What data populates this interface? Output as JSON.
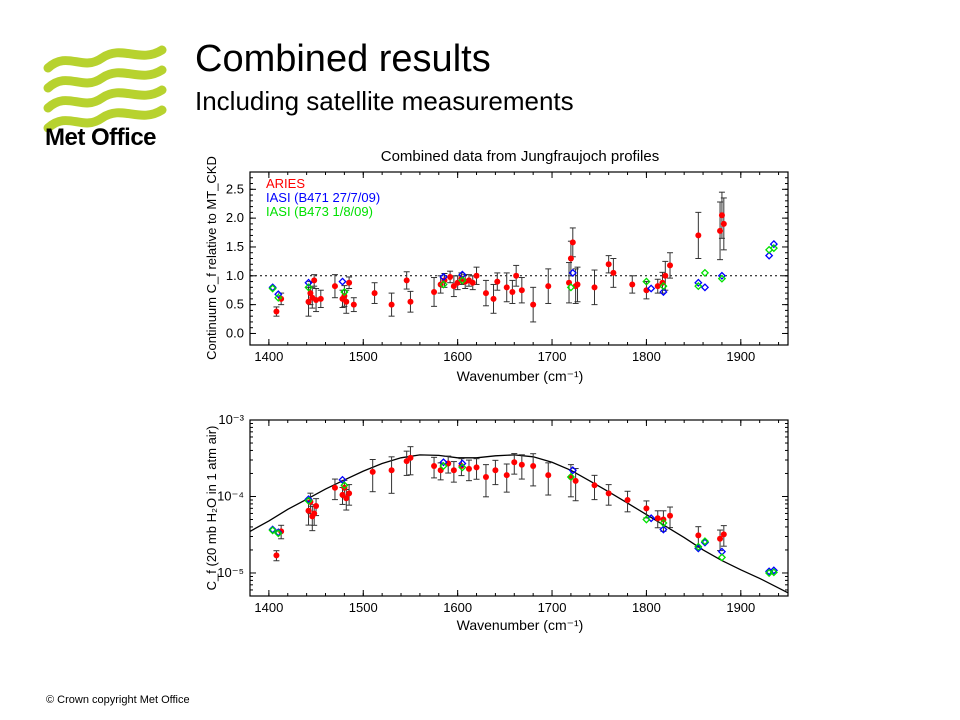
{
  "header": {
    "title": "Combined results",
    "subtitle": "Including satellite measurements"
  },
  "logo": {
    "text": "Met Office",
    "color": "#b7d22f"
  },
  "footer": {
    "copyright": "© Crown  copyright   Met Office"
  },
  "chart_data": [
    {
      "type": "scatter",
      "title": "Combined data from Jungfraujoch profiles",
      "xlabel": "Wavenumber (cm⁻¹)",
      "ylabel": "Continuum C_f relative to MT_CKD",
      "xlim": [
        1380,
        1950
      ],
      "ylim": [
        -0.2,
        2.8
      ],
      "xticks": [
        1400,
        1500,
        1600,
        1700,
        1800,
        1900
      ],
      "yticks": [
        0.0,
        0.5,
        1.0,
        1.5,
        2.0,
        2.5
      ],
      "reference_line": 1.0,
      "legend_position": "top-left",
      "series": [
        {
          "name": "ARIES",
          "color": "#ff0000",
          "marker": "circle",
          "x": [
            1408,
            1413,
            1442,
            1444,
            1446,
            1448,
            1450,
            1455,
            1470,
            1478,
            1480,
            1482,
            1485,
            1490,
            1512,
            1530,
            1546,
            1550,
            1575,
            1582,
            1586,
            1592,
            1596,
            1600,
            1604,
            1608,
            1612,
            1616,
            1620,
            1630,
            1638,
            1642,
            1652,
            1658,
            1662,
            1668,
            1680,
            1696,
            1718,
            1720,
            1722,
            1725,
            1727,
            1745,
            1760,
            1765,
            1785,
            1800,
            1812,
            1817,
            1820,
            1825,
            1855,
            1878,
            1880,
            1882
          ],
          "y": [
            0.38,
            0.6,
            0.55,
            0.7,
            0.62,
            0.92,
            0.58,
            0.6,
            0.82,
            0.6,
            0.65,
            0.55,
            0.88,
            0.5,
            0.7,
            0.5,
            0.92,
            0.55,
            0.72,
            0.85,
            0.92,
            0.98,
            0.82,
            0.88,
            0.95,
            0.9,
            0.92,
            0.88,
            1.0,
            0.7,
            0.6,
            0.9,
            0.8,
            0.72,
            1.0,
            0.75,
            0.5,
            0.82,
            0.88,
            1.3,
            1.58,
            0.82,
            0.85,
            0.8,
            1.2,
            1.05,
            0.85,
            0.75,
            0.82,
            0.88,
            1.0,
            1.18,
            1.7,
            1.78,
            2.05,
            1.9
          ],
          "yerr": [
            0.08,
            0.1,
            0.25,
            0.2,
            0.18,
            0.1,
            0.2,
            0.15,
            0.2,
            0.15,
            0.18,
            0.2,
            0.1,
            0.12,
            0.18,
            0.2,
            0.15,
            0.18,
            0.25,
            0.15,
            0.12,
            0.1,
            0.18,
            0.12,
            0.1,
            0.12,
            0.1,
            0.12,
            0.15,
            0.22,
            0.25,
            0.15,
            0.25,
            0.2,
            0.18,
            0.22,
            0.3,
            0.3,
            0.35,
            0.3,
            0.25,
            0.3,
            0.3,
            0.3,
            0.15,
            0.25,
            0.15,
            0.15,
            0.12,
            0.18,
            0.25,
            0.22,
            0.4,
            0.5,
            0.4,
            0.45
          ]
        },
        {
          "name": "IASI (B471  27/7/09)",
          "color": "#0000ff",
          "marker": "diamond",
          "x": [
            1404,
            1410,
            1442,
            1478,
            1585,
            1605,
            1722,
            1805,
            1818,
            1855,
            1862,
            1880,
            1930,
            1935
          ],
          "y": [
            0.8,
            0.68,
            0.88,
            0.9,
            0.98,
            1.02,
            1.05,
            0.78,
            0.72,
            0.88,
            0.8,
            1.0,
            1.35,
            1.55
          ]
        },
        {
          "name": "IASI (B473  1/8/09)",
          "color": "#00e000",
          "marker": "diamond",
          "x": [
            1404,
            1410,
            1442,
            1480,
            1585,
            1605,
            1720,
            1800,
            1818,
            1855,
            1862,
            1880,
            1930,
            1935
          ],
          "y": [
            0.78,
            0.62,
            0.8,
            0.72,
            0.85,
            0.92,
            0.8,
            0.9,
            0.82,
            0.82,
            1.05,
            0.95,
            1.45,
            1.48
          ]
        }
      ]
    },
    {
      "type": "scatter",
      "xlabel": "Wavenumber (cm⁻¹)",
      "ylabel": "C_f (20 mb H₂O in 1 atm air)",
      "y_scale": "log",
      "xlim": [
        1380,
        1950
      ],
      "ylim": [
        5e-06,
        0.001
      ],
      "xticks": [
        1400,
        1500,
        1600,
        1700,
        1800,
        1900
      ],
      "yticks": [
        1e-05,
        0.0001,
        0.001
      ],
      "ytick_labels": [
        "10⁻⁵",
        "10⁻⁴",
        "10⁻³"
      ],
      "model_curve": {
        "x": [
          1380,
          1400,
          1420,
          1440,
          1460,
          1480,
          1500,
          1520,
          1540,
          1560,
          1580,
          1600,
          1620,
          1640,
          1660,
          1680,
          1700,
          1720,
          1740,
          1760,
          1780,
          1800,
          1820,
          1840,
          1860,
          1880,
          1900,
          1920,
          1950
        ],
        "y": [
          3.5e-05,
          4.8e-05,
          6.8e-05,
          9.2e-05,
          0.000125,
          0.000165,
          0.000215,
          0.00027,
          0.00032,
          0.00035,
          0.000345,
          0.00032,
          0.00032,
          0.00034,
          0.00035,
          0.00033,
          0.00028,
          0.00022,
          0.00016,
          0.000115,
          8.2e-05,
          5.8e-05,
          4.1e-05,
          2.9e-05,
          2e-05,
          1.45e-05,
          1.1e-05,
          8.5e-06,
          5.5e-06
        ]
      },
      "series": [
        {
          "name": "ARIES",
          "color": "#ff0000",
          "marker": "circle",
          "x": [
            1408,
            1413,
            1442,
            1444,
            1446,
            1448,
            1450,
            1470,
            1478,
            1480,
            1482,
            1485,
            1510,
            1530,
            1546,
            1550,
            1575,
            1582,
            1590,
            1596,
            1604,
            1612,
            1620,
            1630,
            1640,
            1652,
            1660,
            1668,
            1680,
            1696,
            1720,
            1725,
            1745,
            1760,
            1780,
            1800,
            1812,
            1818,
            1825,
            1855,
            1878,
            1882
          ],
          "y": [
            1.7e-05,
            3.5e-05,
            6.5e-05,
            8.5e-05,
            5.5e-05,
            6e-05,
            7.5e-05,
            0.00013,
            0.000105,
            0.00013,
            9.5e-05,
            0.00011,
            0.00021,
            0.00022,
            0.00029,
            0.00032,
            0.00025,
            0.00022,
            0.00027,
            0.00022,
            0.00025,
            0.00023,
            0.00024,
            0.00018,
            0.00022,
            0.00019,
            0.00028,
            0.00026,
            0.00025,
            0.00019,
            0.00018,
            0.00016,
            0.00014,
            0.00011,
            9e-05,
            7e-05,
            5.2e-05,
            5e-05,
            5.6e-05,
            3.1e-05,
            2.8e-05,
            3.2e-05
          ],
          "yerr_frac": [
            0.15,
            0.2,
            0.35,
            0.3,
            0.35,
            0.3,
            0.25,
            0.3,
            0.25,
            0.25,
            0.3,
            0.3,
            0.45,
            0.5,
            0.35,
            0.4,
            0.3,
            0.25,
            0.25,
            0.3,
            0.25,
            0.3,
            0.3,
            0.45,
            0.35,
            0.4,
            0.3,
            0.35,
            0.45,
            0.45,
            0.45,
            0.45,
            0.35,
            0.3,
            0.3,
            0.25,
            0.25,
            0.3,
            0.3,
            0.3,
            0.3,
            0.3
          ]
        },
        {
          "name": "IASI (B471  27/7/09)",
          "color": "#0000ff",
          "marker": "diamond",
          "x": [
            1404,
            1410,
            1442,
            1478,
            1585,
            1605,
            1722,
            1805,
            1818,
            1855,
            1862,
            1880,
            1930,
            1935
          ],
          "y": [
            3.7e-05,
            3.4e-05,
            9.2e-05,
            0.000165,
            0.00028,
            0.00027,
            0.00022,
            5.2e-05,
            3.7e-05,
            2.1e-05,
            2.5e-05,
            1.9e-05,
            1.05e-05,
            1.08e-05
          ]
        },
        {
          "name": "IASI (B473  1/8/09)",
          "color": "#00e000",
          "marker": "diamond",
          "x": [
            1404,
            1410,
            1442,
            1480,
            1585,
            1605,
            1720,
            1800,
            1818,
            1855,
            1862,
            1880,
            1930,
            1935
          ],
          "y": [
            3.6e-05,
            3.3e-05,
            8.8e-05,
            0.00014,
            0.00025,
            0.00024,
            0.00018,
            5e-05,
            4.5e-05,
            2.2e-05,
            2.6e-05,
            1.6e-05,
            1e-05,
            1.02e-05
          ]
        }
      ]
    }
  ]
}
